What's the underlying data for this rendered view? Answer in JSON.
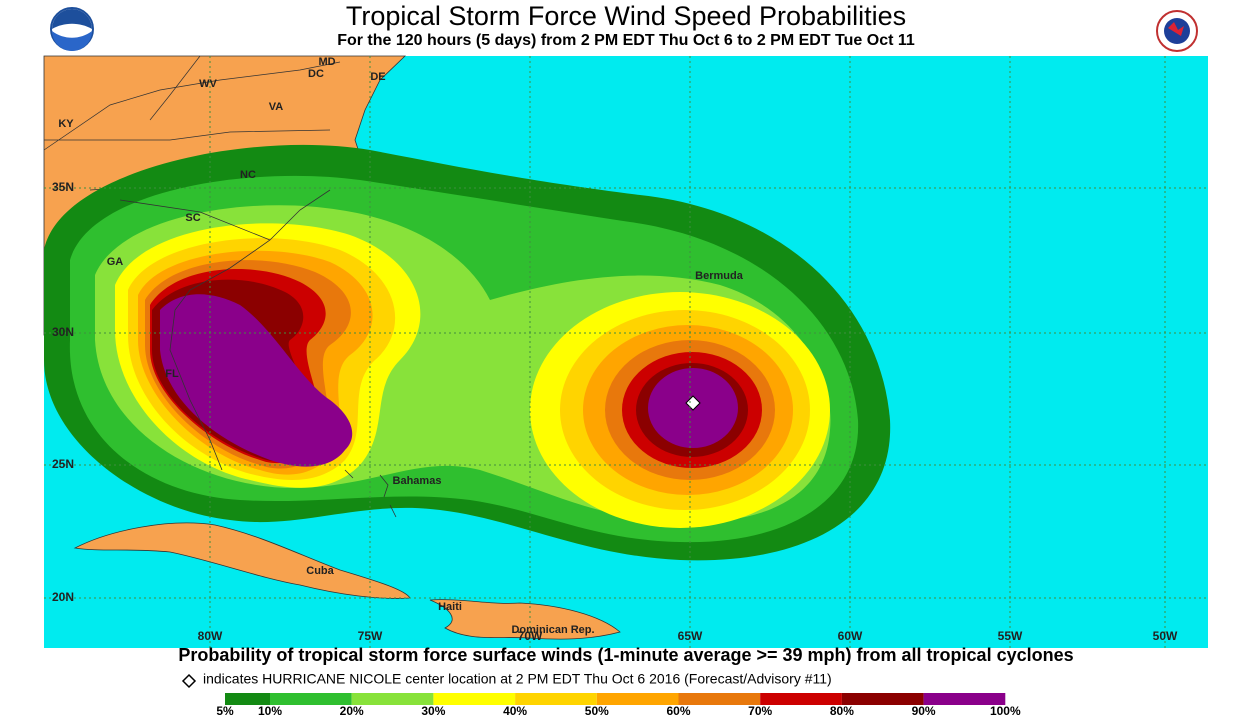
{
  "header": {
    "title": "Tropical Storm Force Wind Speed Probabilities",
    "subtitle": "For the 120 hours (5 days) from 2 PM EDT Thu Oct 6 to 2 PM EDT Tue Oct 11"
  },
  "map": {
    "place_labels": [
      "KY",
      "WV",
      "VA",
      "MD",
      "DC",
      "DE",
      "NC",
      "SC",
      "GA",
      "FL",
      "Bermuda",
      "Bahamas",
      "Cuba",
      "Haiti",
      "Dominican Rep."
    ],
    "lat_labels": [
      "35N",
      "30N",
      "25N",
      "20N"
    ],
    "lon_labels": [
      "80W",
      "75W",
      "70W",
      "65W",
      "60W",
      "55W",
      "50W"
    ]
  },
  "caption": "Probability of tropical storm force surface winds (1-minute average >= 39 mph) from all tropical cyclones",
  "legend": {
    "note": "indicates HURRICANE NICOLE center location at 2 PM EDT Thu Oct 6 2016 (Forecast/Advisory #11)",
    "colors": [
      "#138a13",
      "#2fbf2f",
      "#88e23a",
      "#ffff00",
      "#ffd400",
      "#ffa500",
      "#e8780c",
      "#cc0000",
      "#8b0000",
      "#8a008a"
    ],
    "levels": [
      "5%",
      "10%",
      "20%",
      "30%",
      "40%",
      "50%",
      "60%",
      "70%",
      "80%",
      "90%",
      "100%"
    ]
  }
}
